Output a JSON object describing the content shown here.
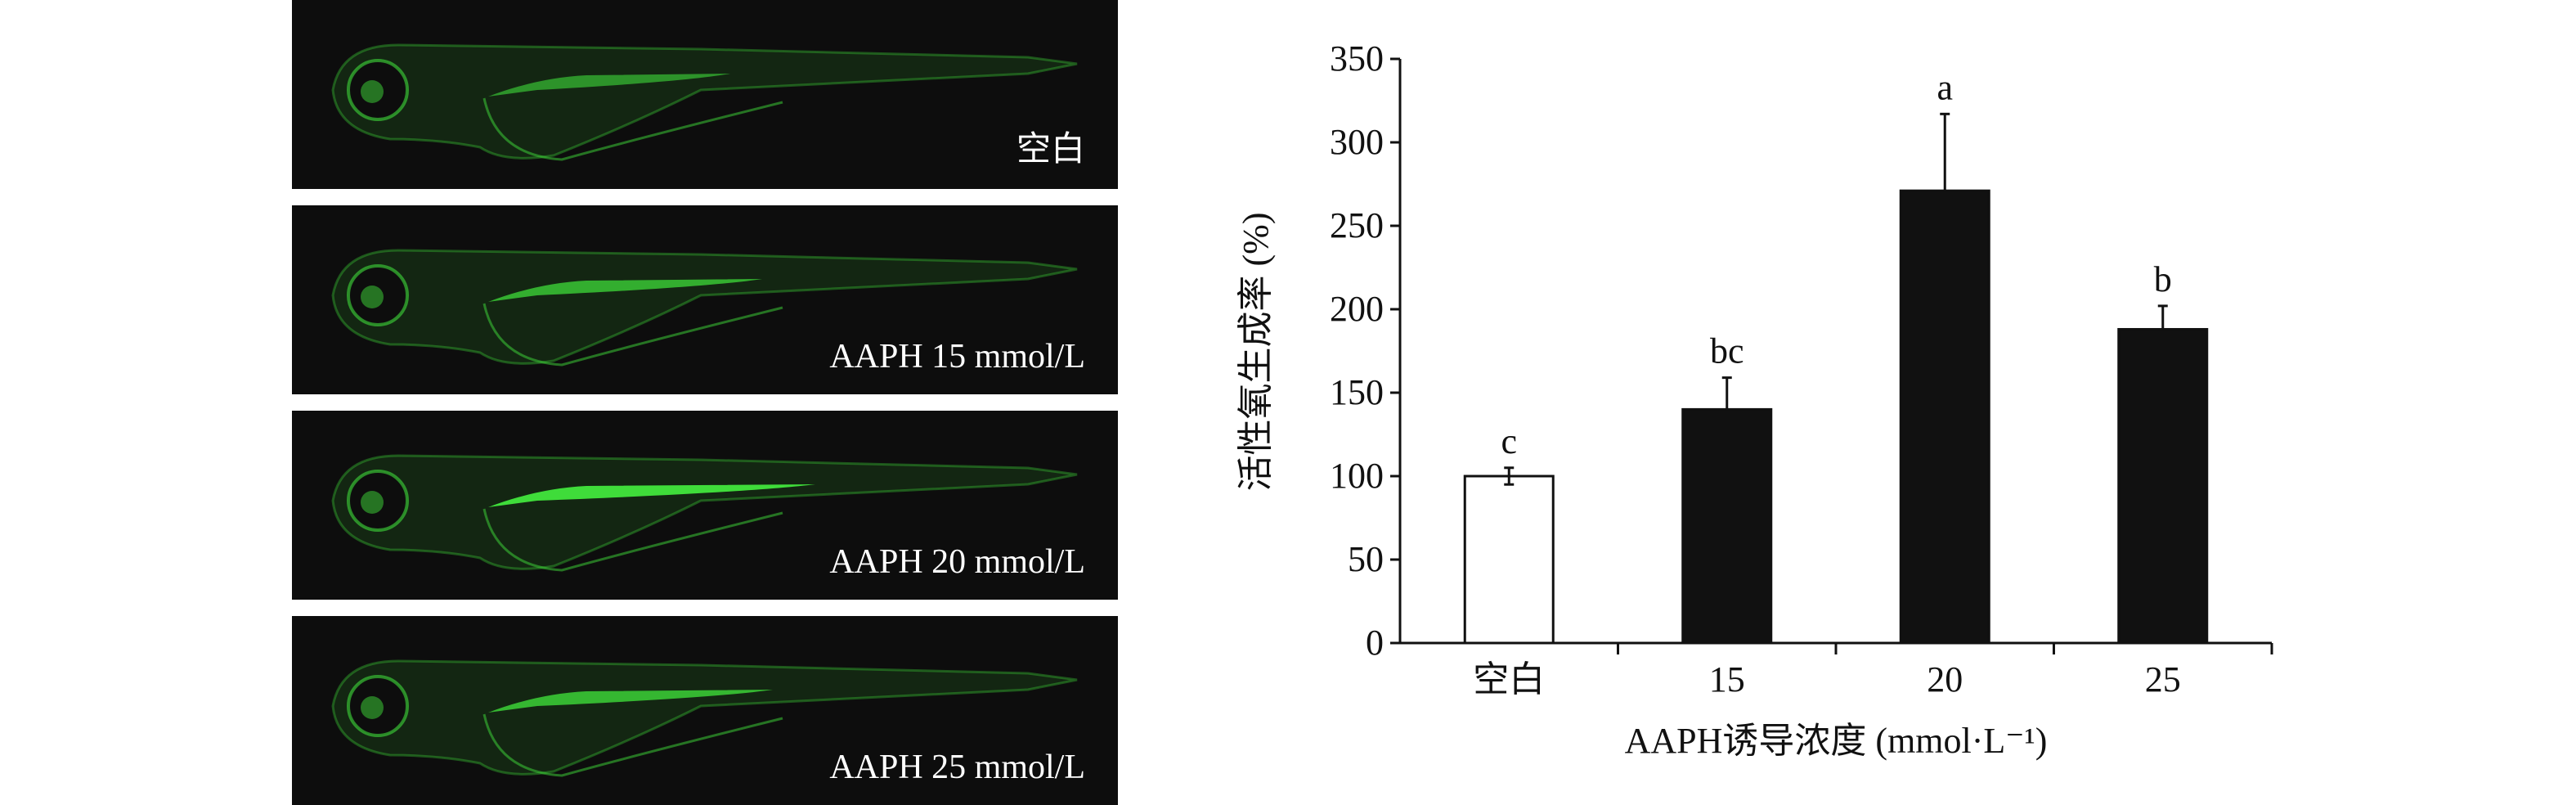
{
  "panels": [
    {
      "label": "空白",
      "gut_intensity": 0.6
    },
    {
      "label": "AAPH 15 mmol/L",
      "gut_intensity": 0.75
    },
    {
      "label": "AAPH 20 mmol/L",
      "gut_intensity": 1.0
    },
    {
      "label": "AAPH 25 mmol/L",
      "gut_intensity": 0.8
    }
  ],
  "colors": {
    "fluorescence": "#3fdc3a",
    "panel_bg": "#0d0d0d",
    "bar_fill": "#111111",
    "control_fill": "#ffffff"
  },
  "chart_data": {
    "type": "bar",
    "categories": [
      "空白",
      "15",
      "20",
      "25"
    ],
    "values": [
      100,
      140,
      271,
      188
    ],
    "errors": [
      5,
      19,
      46,
      14
    ],
    "significance": [
      "c",
      "bc",
      "a",
      "b"
    ],
    "fills": [
      "#ffffff",
      "#111111",
      "#111111",
      "#111111"
    ],
    "xlabel": "AAPH诱导浓度 (mmol·L⁻¹)",
    "ylabel": "活性氧生成率 (%)",
    "ylim": [
      0,
      350
    ],
    "yticks": [
      0,
      50,
      100,
      150,
      200,
      250,
      300,
      350
    ],
    "grid": false
  }
}
